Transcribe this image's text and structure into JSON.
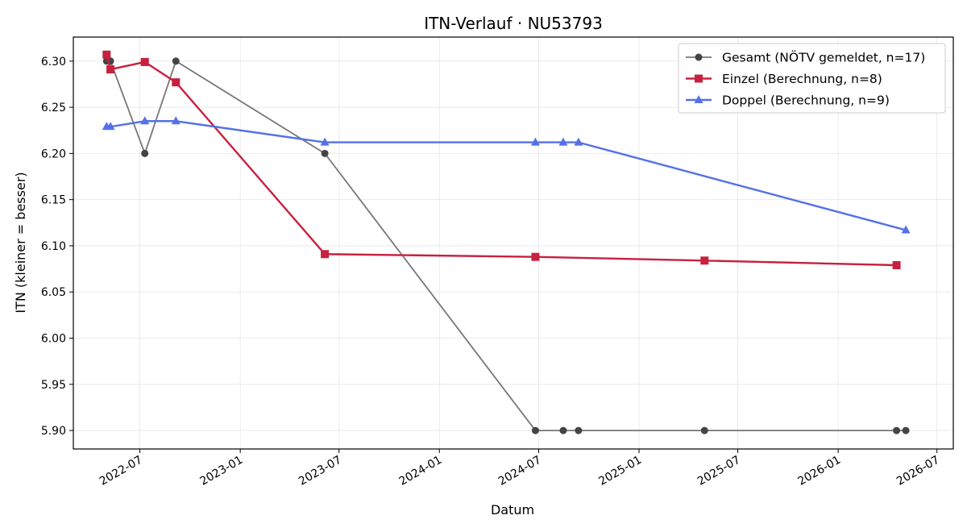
{
  "chart_data": {
    "type": "line",
    "title": "ITN-Verlauf · NU53793",
    "xlabel": "Datum",
    "ylabel": "ITN  (kleiner = besser)",
    "x_axis": "date",
    "xlim": [
      "2022-03-01",
      "2026-07-31"
    ],
    "ylim": [
      5.88,
      6.326
    ],
    "xticks": [
      "2022-07-01",
      "2023-01-01",
      "2023-07-01",
      "2024-01-01",
      "2024-07-01",
      "2025-01-01",
      "2025-07-01",
      "2026-01-01",
      "2026-07-01"
    ],
    "xtick_labels": [
      "2022-07",
      "2023-01",
      "2023-07",
      "2024-01",
      "2024-07",
      "2025-01",
      "2025-07",
      "2026-01",
      "2026-07"
    ],
    "yticks": [
      5.9,
      5.95,
      6.0,
      6.05,
      6.1,
      6.15,
      6.2,
      6.25,
      6.3
    ],
    "ytick_labels": [
      "5.90",
      "5.95",
      "6.00",
      "6.05",
      "6.10",
      "6.15",
      "6.20",
      "6.25",
      "6.30"
    ],
    "grid": true,
    "legend_position": "top-right",
    "series": [
      {
        "name": "Gesamt (NÖTV gemeldet, n=17)",
        "color": "#777777",
        "marker": "circle",
        "marker_color": "#444444",
        "points": [
          {
            "x": "2022-05-01",
            "y": 6.3
          },
          {
            "x": "2022-05-08",
            "y": 6.3
          },
          {
            "x": "2022-07-10",
            "y": 6.2
          },
          {
            "x": "2022-09-05",
            "y": 6.3
          },
          {
            "x": "2023-06-05",
            "y": 6.2
          },
          {
            "x": "2024-06-25",
            "y": 5.9
          },
          {
            "x": "2024-08-15",
            "y": 5.9
          },
          {
            "x": "2024-09-12",
            "y": 5.9
          },
          {
            "x": "2025-05-01",
            "y": 5.9
          },
          {
            "x": "2026-04-18",
            "y": 5.9
          },
          {
            "x": "2026-05-05",
            "y": 5.9
          }
        ]
      },
      {
        "name": "Einzel (Berechnung, n=8)",
        "color": "#c8203f",
        "marker": "square",
        "points": [
          {
            "x": "2022-05-01",
            "y": 6.307
          },
          {
            "x": "2022-05-08",
            "y": 6.291
          },
          {
            "x": "2022-07-10",
            "y": 6.299
          },
          {
            "x": "2022-09-05",
            "y": 6.277
          },
          {
            "x": "2023-06-05",
            "y": 6.091
          },
          {
            "x": "2024-06-25",
            "y": 6.088
          },
          {
            "x": "2025-05-01",
            "y": 6.084
          },
          {
            "x": "2026-04-18",
            "y": 6.079
          }
        ]
      },
      {
        "name": "Doppel (Berechnung, n=9)",
        "color": "#5470e8",
        "marker": "triangle",
        "points": [
          {
            "x": "2022-05-01",
            "y": 6.229
          },
          {
            "x": "2022-05-08",
            "y": 6.229
          },
          {
            "x": "2022-07-10",
            "y": 6.235
          },
          {
            "x": "2022-09-05",
            "y": 6.235
          },
          {
            "x": "2023-06-05",
            "y": 6.212
          },
          {
            "x": "2024-06-25",
            "y": 6.212
          },
          {
            "x": "2024-08-15",
            "y": 6.212
          },
          {
            "x": "2024-09-12",
            "y": 6.212
          },
          {
            "x": "2026-05-05",
            "y": 6.117
          }
        ]
      }
    ]
  }
}
